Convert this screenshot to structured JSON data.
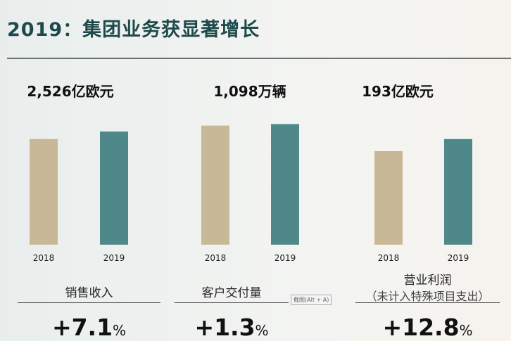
{
  "title": "2019：集团业务获显著增长",
  "colors": {
    "y2018": "#c9b898",
    "y2019": "#4e8889",
    "title": "#1f4a4b"
  },
  "chart_data": [
    {
      "type": "bar",
      "title": "2,526亿欧元",
      "categories": [
        "2018",
        "2019"
      ],
      "values": [
        2359,
        2526
      ],
      "ylim": [
        0,
        3140
      ],
      "label": "销售收入",
      "change": "+7.1",
      "unit": "%"
    },
    {
      "type": "bar",
      "title": "1,098万辆",
      "categories": [
        "2018",
        "2019"
      ],
      "values": [
        1084,
        1098
      ],
      "ylim": [
        0,
        1280
      ],
      "label": "客户交付量",
      "change": "+1.3",
      "unit": "%"
    },
    {
      "type": "bar",
      "title": "193亿欧元",
      "categories": [
        "2018",
        "2019"
      ],
      "values": [
        171,
        193
      ],
      "ylim": [
        0,
        257
      ],
      "label": "营业利润",
      "sublabel": "（未计入特殊项目支出）",
      "change": "+12.8",
      "unit": "%"
    }
  ],
  "tooltip": "截图(Alt + A)"
}
